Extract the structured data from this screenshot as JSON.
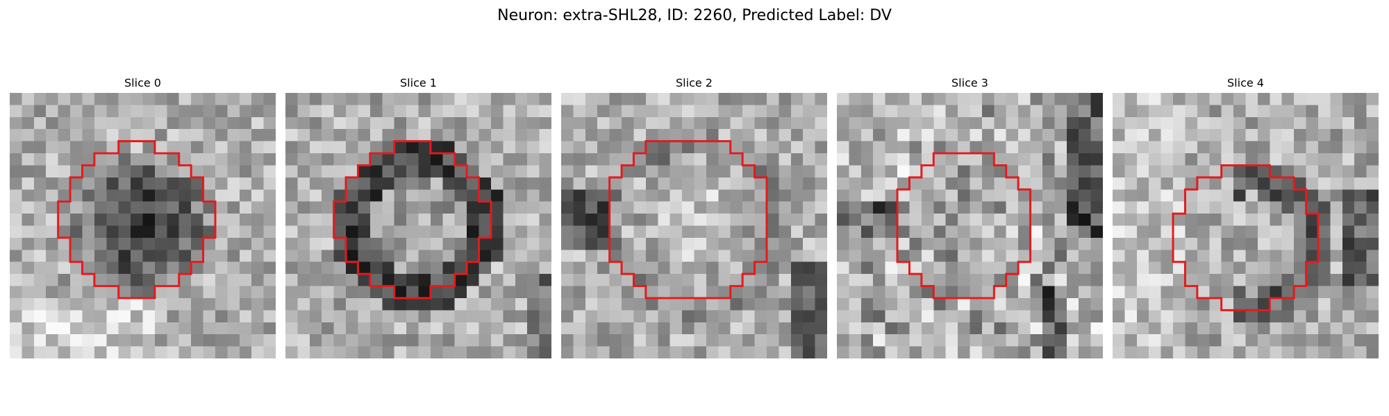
{
  "figure": {
    "title": "Neuron: extra-SHL28, ID: 2260, Predicted Label: DV"
  },
  "panels": [
    {
      "title": "Slice 0",
      "center": [
        10.5,
        10.5
      ],
      "radius": 6.3,
      "mode": "dark_blob"
    },
    {
      "title": "Slice 1",
      "center": [
        10.5,
        10.5
      ],
      "radius": 6.3,
      "mode": "dark_ring"
    },
    {
      "title": "Slice 2",
      "center": [
        10.5,
        10.5
      ],
      "radius": 6.8,
      "mode": "light_center"
    },
    {
      "title": "Slice 3",
      "center": [
        10.5,
        11.0
      ],
      "radius": 6.0,
      "mode": "speckled"
    },
    {
      "title": "Slice 4",
      "center": [
        11.0,
        12.0
      ],
      "radius": 6.0,
      "mode": "dark_ring_right"
    }
  ],
  "colors": {
    "contour": "#e41a1c",
    "background": "#ffffff"
  }
}
